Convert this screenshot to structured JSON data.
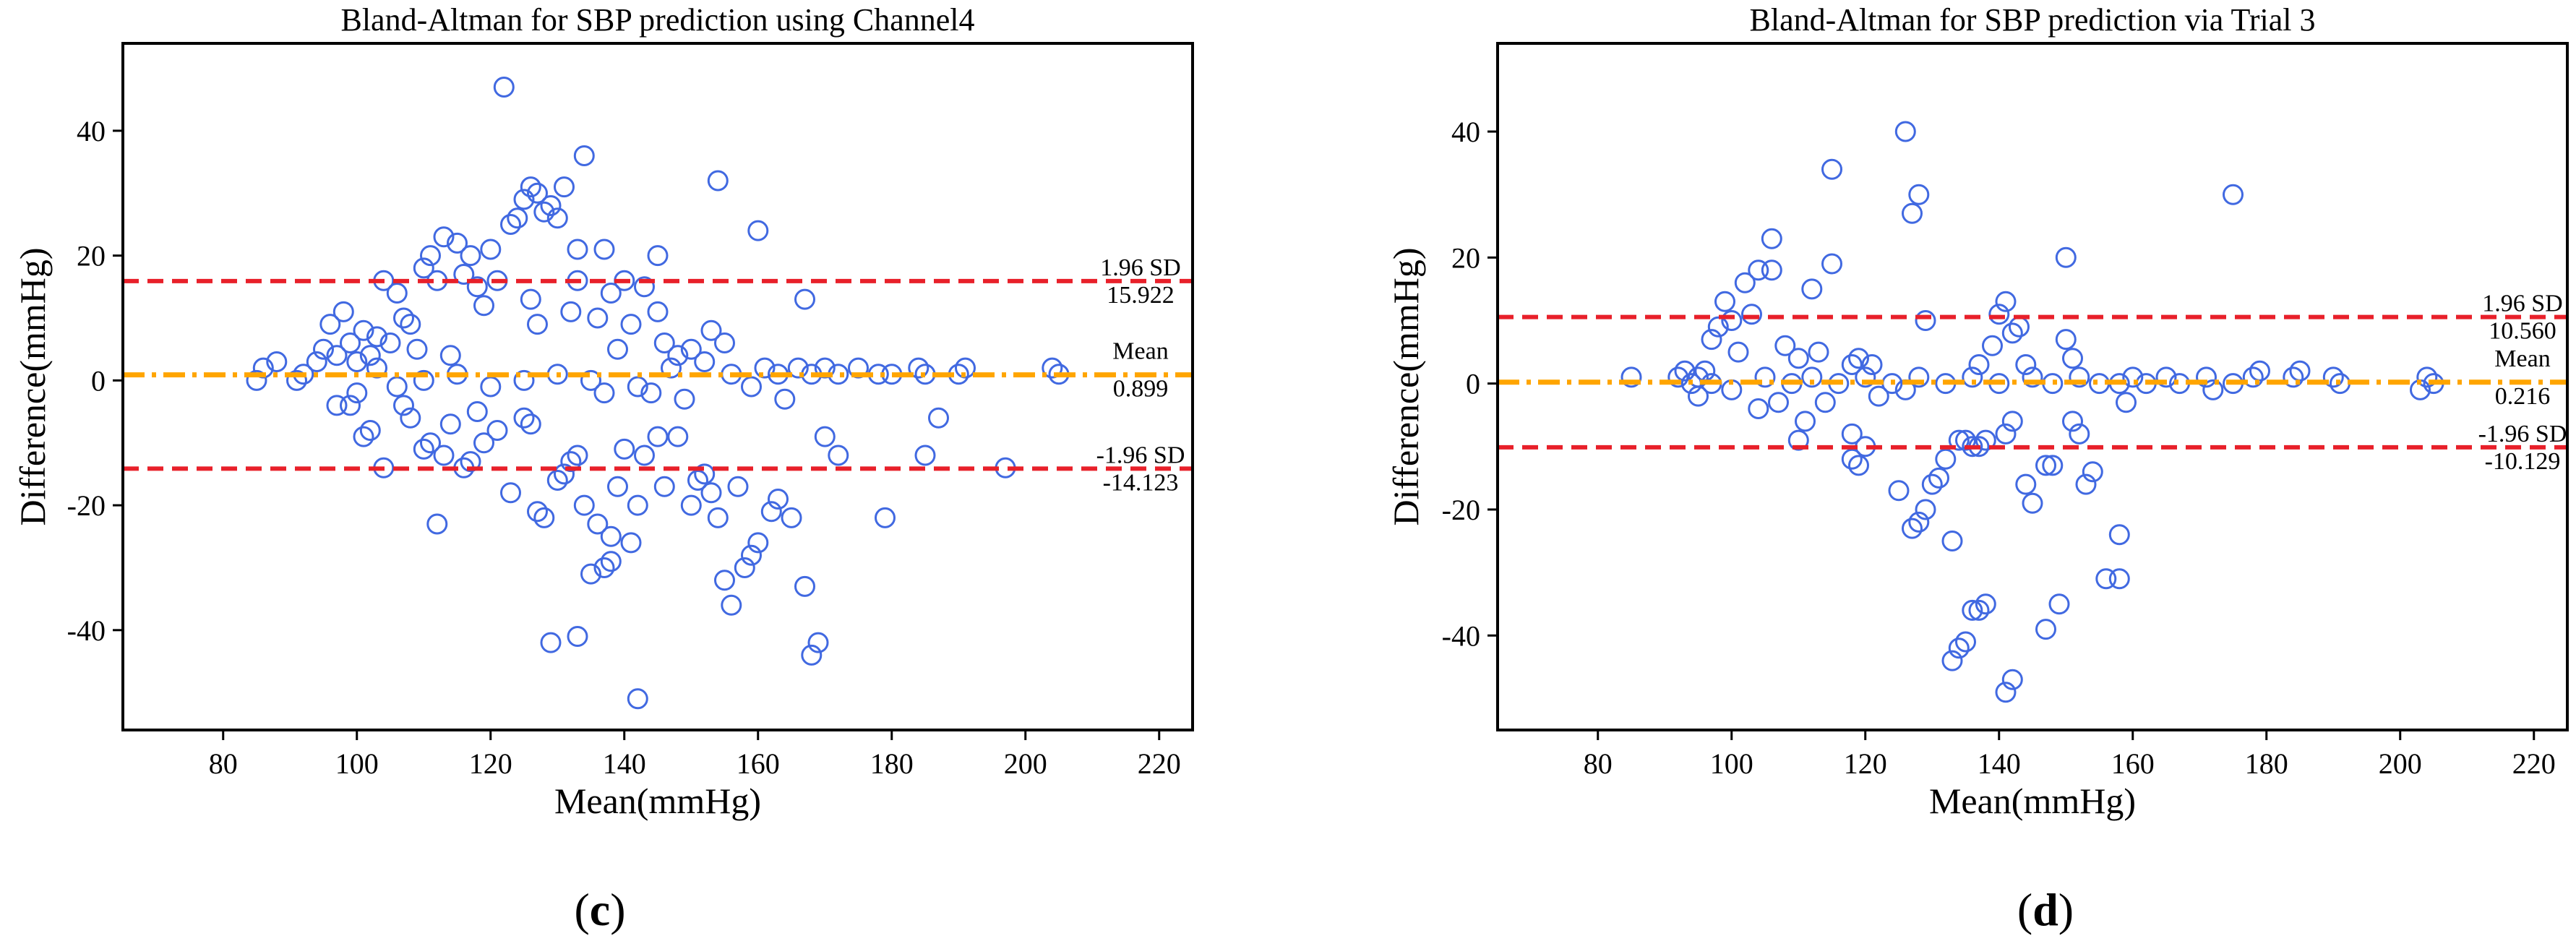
{
  "figure": {
    "colors": {
      "marker": "#4169e1",
      "limit_line": "#e8202a",
      "mean_line": "#ffa500",
      "frame": "#000000"
    }
  },
  "chart_data": [
    {
      "type": "scatter",
      "panel_label": "(c)",
      "panel_letter": "c",
      "title": "Bland-Altman for SBP prediction using Channel4",
      "xlabel": "Mean(mmHg)",
      "ylabel": "Difference(mmHg)",
      "xlim": [
        65,
        225
      ],
      "ylim": [
        -56,
        54
      ],
      "xticks": [
        80,
        100,
        120,
        140,
        160,
        180,
        200,
        220
      ],
      "yticks": [
        -40,
        -20,
        0,
        20,
        40
      ],
      "mean_diff": 0.899,
      "upper_loa": 15.922,
      "lower_loa": -14.123,
      "annotations": {
        "upper_label": "1.96 SD",
        "upper_value": "15.922",
        "mean_label": "Mean",
        "mean_value": "0.899",
        "lower_label": "-1.96 SD",
        "lower_value": "-14.123"
      },
      "points": [
        [
          122,
          47
        ],
        [
          134,
          36
        ],
        [
          154,
          32
        ],
        [
          126,
          31
        ],
        [
          127,
          30
        ],
        [
          125,
          29
        ],
        [
          129,
          28
        ],
        [
          123,
          25
        ],
        [
          124,
          26
        ],
        [
          131,
          31
        ],
        [
          133,
          21
        ],
        [
          137,
          21
        ],
        [
          115,
          22
        ],
        [
          117,
          20
        ],
        [
          120,
          21
        ],
        [
          128,
          27
        ],
        [
          130,
          26
        ],
        [
          113,
          23
        ],
        [
          111,
          20
        ],
        [
          160,
          24
        ],
        [
          145,
          20
        ],
        [
          110,
          18
        ],
        [
          116,
          17
        ],
        [
          118,
          15
        ],
        [
          121,
          16
        ],
        [
          112,
          16
        ],
        [
          104,
          16
        ],
        [
          133,
          16
        ],
        [
          143,
          15
        ],
        [
          140,
          16
        ],
        [
          106,
          14
        ],
        [
          138,
          14
        ],
        [
          126,
          13
        ],
        [
          167,
          13
        ],
        [
          132,
          11
        ],
        [
          145,
          11
        ],
        [
          107,
          10
        ],
        [
          119,
          12
        ],
        [
          127,
          9
        ],
        [
          136,
          10
        ],
        [
          141,
          9
        ],
        [
          150,
          5
        ],
        [
          108,
          9
        ],
        [
          101,
          8
        ],
        [
          96,
          9
        ],
        [
          98,
          11
        ],
        [
          99,
          6
        ],
        [
          103,
          7
        ],
        [
          146,
          6
        ],
        [
          139,
          5
        ],
        [
          153,
          8
        ],
        [
          155,
          6
        ],
        [
          88,
          3
        ],
        [
          86,
          2
        ],
        [
          85,
          0
        ],
        [
          94,
          3
        ],
        [
          95,
          5
        ],
        [
          92,
          1
        ],
        [
          91,
          0
        ],
        [
          97,
          4
        ],
        [
          100,
          3
        ],
        [
          102,
          4
        ],
        [
          105,
          6
        ],
        [
          109,
          5
        ],
        [
          114,
          4
        ],
        [
          161,
          2
        ],
        [
          163,
          1
        ],
        [
          166,
          2
        ],
        [
          168,
          1
        ],
        [
          170,
          2
        ],
        [
          172,
          1
        ],
        [
          175,
          2
        ],
        [
          178,
          1
        ],
        [
          180,
          1
        ],
        [
          184,
          2
        ],
        [
          185,
          1
        ],
        [
          190,
          1
        ],
        [
          191,
          2
        ],
        [
          204,
          2
        ],
        [
          205,
          1
        ],
        [
          148,
          4
        ],
        [
          152,
          3
        ],
        [
          137,
          -2
        ],
        [
          142,
          -1
        ],
        [
          149,
          -3
        ],
        [
          159,
          -1
        ],
        [
          164,
          -3
        ],
        [
          156,
          1
        ],
        [
          147,
          2
        ],
        [
          144,
          -2
        ],
        [
          135,
          0
        ],
        [
          130,
          1
        ],
        [
          125,
          0
        ],
        [
          120,
          -1
        ],
        [
          115,
          1
        ],
        [
          110,
          0
        ],
        [
          106,
          -1
        ],
        [
          103,
          2
        ],
        [
          100,
          -2
        ],
        [
          97,
          -4
        ],
        [
          99,
          -4
        ],
        [
          102,
          -8
        ],
        [
          101,
          -9
        ],
        [
          104,
          -14
        ],
        [
          108,
          -6
        ],
        [
          110,
          -11
        ],
        [
          111,
          -10
        ],
        [
          113,
          -12
        ],
        [
          116,
          -14
        ],
        [
          117,
          -13
        ],
        [
          112,
          -23
        ],
        [
          119,
          -10
        ],
        [
          121,
          -8
        ],
        [
          123,
          -18
        ],
        [
          125,
          -6
        ],
        [
          127,
          -21
        ],
        [
          128,
          -22
        ],
        [
          130,
          -16
        ],
        [
          131,
          -15
        ],
        [
          132,
          -13
        ],
        [
          133,
          -12
        ],
        [
          134,
          -20
        ],
        [
          135,
          -31
        ],
        [
          136,
          -23
        ],
        [
          137,
          -30
        ],
        [
          138,
          -25
        ],
        [
          139,
          -17
        ],
        [
          140,
          -11
        ],
        [
          141,
          -26
        ],
        [
          142,
          -20
        ],
        [
          143,
          -12
        ],
        [
          145,
          -9
        ],
        [
          146,
          -17
        ],
        [
          148,
          -9
        ],
        [
          150,
          -20
        ],
        [
          151,
          -16
        ],
        [
          152,
          -15
        ],
        [
          153,
          -18
        ],
        [
          154,
          -22
        ],
        [
          155,
          -32
        ],
        [
          156,
          -36
        ],
        [
          157,
          -17
        ],
        [
          158,
          -30
        ],
        [
          159,
          -28
        ],
        [
          160,
          -26
        ],
        [
          162,
          -21
        ],
        [
          163,
          -19
        ],
        [
          165,
          -22
        ],
        [
          167,
          -33
        ],
        [
          168,
          -44
        ],
        [
          169,
          -42
        ],
        [
          170,
          -9
        ],
        [
          172,
          -12
        ],
        [
          179,
          -22
        ],
        [
          185,
          -12
        ],
        [
          187,
          -6
        ],
        [
          197,
          -14
        ],
        [
          129,
          -42
        ],
        [
          133,
          -41
        ],
        [
          142,
          -51
        ],
        [
          138,
          -29
        ],
        [
          126,
          -7
        ],
        [
          118,
          -5
        ],
        [
          114,
          -7
        ],
        [
          107,
          -4
        ]
      ]
    },
    {
      "type": "scatter",
      "panel_label": "(d)",
      "panel_letter": "d",
      "title": "Bland-Altman for SBP prediction via Trial 3",
      "xlabel": "Mean(mmHg)",
      "ylabel": "Difference(mmHg)",
      "xlim": [
        65,
        225
      ],
      "ylim": [
        -55,
        54
      ],
      "xticks": [
        80,
        100,
        120,
        140,
        160,
        180,
        200,
        220
      ],
      "yticks": [
        -40,
        -20,
        0,
        20,
        40
      ],
      "mean_diff": 0.216,
      "upper_loa": 10.56,
      "lower_loa": -10.129,
      "annotations": {
        "upper_label": "1.96 SD",
        "upper_value": "10.560",
        "mean_label": "Mean",
        "mean_value": "0.216",
        "lower_label": "-1.96 SD",
        "lower_value": "-10.129"
      },
      "points": [
        [
          126,
          40
        ],
        [
          115,
          34
        ],
        [
          128,
          30
        ],
        [
          175,
          30
        ],
        [
          127,
          27
        ],
        [
          106,
          23
        ],
        [
          115,
          19
        ],
        [
          150,
          20
        ],
        [
          102,
          16
        ],
        [
          104,
          18
        ],
        [
          106,
          18
        ],
        [
          112,
          15
        ],
        [
          99,
          13
        ],
        [
          100,
          10
        ],
        [
          103,
          11
        ],
        [
          97,
          7
        ],
        [
          98,
          9
        ],
        [
          101,
          5
        ],
        [
          108,
          6
        ],
        [
          110,
          4
        ],
        [
          113,
          5
        ],
        [
          118,
          3
        ],
        [
          119,
          4
        ],
        [
          121,
          3
        ],
        [
          129,
          10
        ],
        [
          141,
          13
        ],
        [
          140,
          11
        ],
        [
          142,
          8
        ],
        [
          143,
          9
        ],
        [
          139,
          6
        ],
        [
          137,
          3
        ],
        [
          144,
          3
        ],
        [
          150,
          7
        ],
        [
          151,
          4
        ],
        [
          85,
          1
        ],
        [
          92,
          1
        ],
        [
          93,
          2
        ],
        [
          94,
          0
        ],
        [
          95,
          1
        ],
        [
          96,
          2
        ],
        [
          97,
          0
        ],
        [
          105,
          1
        ],
        [
          109,
          0
        ],
        [
          112,
          1
        ],
        [
          116,
          0
        ],
        [
          120,
          1
        ],
        [
          124,
          0
        ],
        [
          128,
          1
        ],
        [
          132,
          0
        ],
        [
          136,
          1
        ],
        [
          140,
          0
        ],
        [
          145,
          1
        ],
        [
          148,
          0
        ],
        [
          152,
          1
        ],
        [
          155,
          0
        ],
        [
          158,
          0
        ],
        [
          160,
          1
        ],
        [
          162,
          0
        ],
        [
          165,
          1
        ],
        [
          167,
          0
        ],
        [
          171,
          1
        ],
        [
          172,
          -1
        ],
        [
          175,
          0
        ],
        [
          178,
          1
        ],
        [
          179,
          2
        ],
        [
          184,
          1
        ],
        [
          185,
          2
        ],
        [
          190,
          1
        ],
        [
          191,
          0
        ],
        [
          203,
          -1
        ],
        [
          204,
          1
        ],
        [
          205,
          0
        ],
        [
          95,
          -2
        ],
        [
          100,
          -1
        ],
        [
          104,
          -4
        ],
        [
          107,
          -3
        ],
        [
          110,
          -9
        ],
        [
          111,
          -6
        ],
        [
          114,
          -3
        ],
        [
          118,
          -8
        ],
        [
          118,
          -12
        ],
        [
          119,
          -13
        ],
        [
          120,
          -10
        ],
        [
          125,
          -17
        ],
        [
          127,
          -23
        ],
        [
          128,
          -22
        ],
        [
          129,
          -20
        ],
        [
          130,
          -16
        ],
        [
          131,
          -15
        ],
        [
          132,
          -12
        ],
        [
          133,
          -25
        ],
        [
          134,
          -9
        ],
        [
          135,
          -9
        ],
        [
          136,
          -10
        ],
        [
          137,
          -10
        ],
        [
          138,
          -9
        ],
        [
          141,
          -8
        ],
        [
          142,
          -6
        ],
        [
          144,
          -16
        ],
        [
          145,
          -19
        ],
        [
          147,
          -13
        ],
        [
          148,
          -13
        ],
        [
          151,
          -6
        ],
        [
          152,
          -8
        ],
        [
          153,
          -16
        ],
        [
          154,
          -14
        ],
        [
          156,
          -31
        ],
        [
          158,
          -24
        ],
        [
          158,
          -31
        ],
        [
          159,
          -3
        ],
        [
          133,
          -44
        ],
        [
          134,
          -42
        ],
        [
          135,
          -41
        ],
        [
          136,
          -36
        ],
        [
          137,
          -36
        ],
        [
          138,
          -35
        ],
        [
          141,
          -49
        ],
        [
          142,
          -47
        ],
        [
          147,
          -39
        ],
        [
          149,
          -35
        ],
        [
          126,
          -1
        ],
        [
          122,
          -2
        ]
      ]
    }
  ]
}
